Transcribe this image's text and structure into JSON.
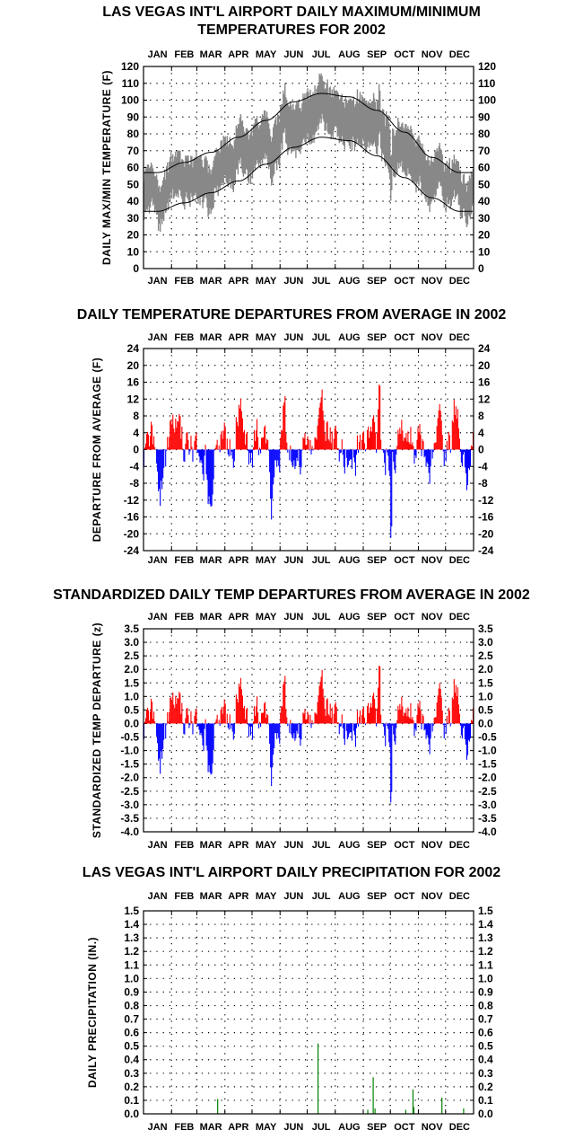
{
  "chart_data": [
    {
      "type": "area",
      "id": "temps",
      "title_lines": [
        "LAS VEGAS INT'L AIRPORT DAILY MAXIMUM/MINIMUM",
        "TEMPERATURES FOR 2002"
      ],
      "ylabel": "DAILY MAX/MIN TEMPERATURE (F)",
      "months": [
        "JAN",
        "FEB",
        "MAR",
        "APR",
        "MAY",
        "JUN",
        "JUL",
        "AUG",
        "SEP",
        "OCT",
        "NOV",
        "DEC"
      ],
      "ylim": [
        0,
        120
      ],
      "yticks": [
        "0",
        "10",
        "20",
        "30",
        "40",
        "50",
        "60",
        "70",
        "80",
        "90",
        "100",
        "110",
        "120"
      ],
      "grid": true,
      "normal_max_monthly": [
        57,
        63,
        69,
        78,
        88,
        99,
        104,
        102,
        94,
        81,
        66,
        57
      ],
      "normal_min_monthly": [
        34,
        39,
        45,
        52,
        62,
        72,
        78,
        76,
        67,
        54,
        42,
        34
      ],
      "colors": {
        "band": "#888888",
        "normals": "#000000"
      }
    },
    {
      "type": "bar",
      "id": "departures",
      "title": "DAILY TEMPERATURE DEPARTURES FROM AVERAGE IN 2002",
      "ylabel": "DEPARTURE FROM AVERAGE (F)",
      "months": [
        "JAN",
        "FEB",
        "MAR",
        "APR",
        "MAY",
        "JUN",
        "JUL",
        "AUG",
        "SEP",
        "OCT",
        "NOV",
        "DEC"
      ],
      "ylim": [
        -24,
        24
      ],
      "yticks": [
        "-24",
        "-20",
        "-16",
        "-12",
        "-8",
        "-4",
        "0",
        "4",
        "8",
        "12",
        "16",
        "20",
        "24"
      ],
      "grid": true,
      "colors": {
        "positive": "#ff0000",
        "negative": "#0000ff"
      }
    },
    {
      "type": "bar",
      "id": "standardized",
      "title": "STANDARDIZED DAILY TEMP DEPARTURES FROM AVERAGE IN 2002",
      "ylabel": "STANDARDIZED TEMP DEPARTURE (z)",
      "months": [
        "JAN",
        "FEB",
        "MAR",
        "APR",
        "MAY",
        "JUN",
        "JUL",
        "AUG",
        "SEP",
        "OCT",
        "NOV",
        "DEC"
      ],
      "ylim": [
        -4.0,
        3.5
      ],
      "yticks": [
        "-4.0",
        "-3.5",
        "-3.0",
        "-2.5",
        "-2.0",
        "-1.5",
        "-1.0",
        "-0.5",
        "0.0",
        "0.5",
        "1.0",
        "1.5",
        "2.0",
        "2.5",
        "3.0",
        "3.5"
      ],
      "grid": true,
      "colors": {
        "positive": "#ff0000",
        "negative": "#0000ff"
      }
    },
    {
      "type": "bar",
      "id": "precip",
      "title": "LAS VEGAS INT'L AIRPORT DAILY PRECIPITATION FOR 2002",
      "ylabel": "DAILY PRECIPITATION (IN.)",
      "months": [
        "JAN",
        "FEB",
        "MAR",
        "APR",
        "MAY",
        "JUN",
        "JUL",
        "AUG",
        "SEP",
        "OCT",
        "NOV",
        "DEC"
      ],
      "ylim": [
        0.0,
        1.5
      ],
      "yticks": [
        "0.0",
        "0.1",
        "0.2",
        "0.3",
        "0.4",
        "0.5",
        "0.6",
        "0.7",
        "0.8",
        "0.9",
        "1.0",
        "1.1",
        "1.2",
        "1.3",
        "1.4",
        "1.5"
      ],
      "grid": true,
      "events": [
        {
          "day": 82,
          "value": 0.11
        },
        {
          "day": 193,
          "value": 0.52
        },
        {
          "day": 248,
          "value": 0.03
        },
        {
          "day": 254,
          "value": 0.27
        },
        {
          "day": 256,
          "value": 0.04
        },
        {
          "day": 290,
          "value": 0.03
        },
        {
          "day": 298,
          "value": 0.18
        },
        {
          "day": 299,
          "value": 0.05
        },
        {
          "day": 330,
          "value": 0.12
        },
        {
          "day": 354,
          "value": 0.04
        }
      ],
      "colors": {
        "bars": "#008000"
      }
    }
  ]
}
